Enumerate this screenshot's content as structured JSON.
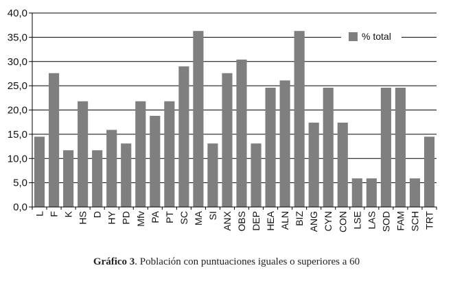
{
  "chart_data": {
    "type": "bar",
    "categories": [
      "L",
      "F",
      "K",
      "HS",
      "D",
      "HY",
      "PD",
      "Mfv",
      "PA",
      "PT",
      "SC",
      "MA",
      "SI",
      "ANX",
      "OBS",
      "DEP",
      "HEA",
      "ALN",
      "BIZ",
      "ANG",
      "CYN",
      "CON",
      "LSE",
      "LAS",
      "SOD",
      "FAM",
      "SCH",
      "TRT"
    ],
    "series": [
      {
        "name": "% total",
        "values": [
          14.5,
          27.6,
          11.7,
          21.8,
          11.7,
          15.9,
          13.1,
          21.8,
          18.8,
          21.8,
          29.0,
          36.3,
          13.1,
          27.6,
          30.4,
          13.1,
          24.6,
          26.1,
          36.3,
          17.4,
          24.6,
          17.4,
          5.9,
          5.9,
          24.6,
          24.6,
          5.9,
          14.5
        ]
      }
    ],
    "yticks": [
      "0,0",
      "5,0",
      "10,0",
      "15,0",
      "20,0",
      "25,0",
      "30,0",
      "35,0",
      "40,0"
    ],
    "ylim": [
      0,
      40
    ],
    "grid": true,
    "legend_position": "top-right",
    "bar_color": "#7f7f7f"
  },
  "caption": {
    "label": "Gráfico 3",
    "text": ". Población con puntuaciones iguales o superiores a 60"
  }
}
